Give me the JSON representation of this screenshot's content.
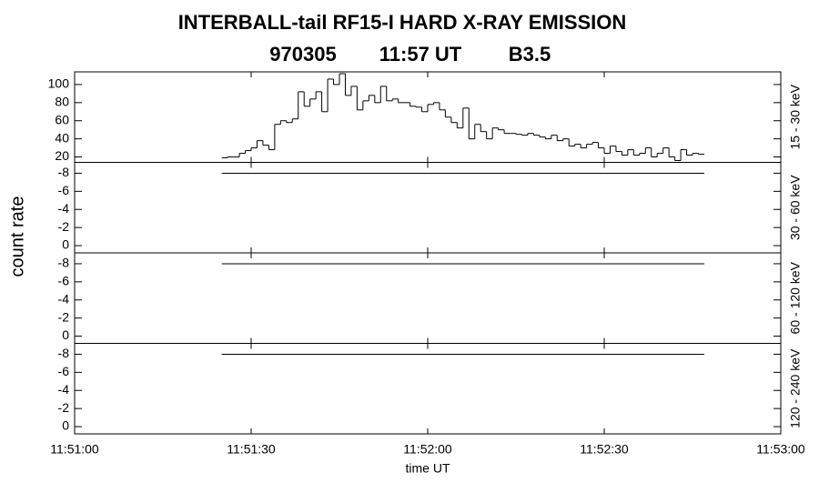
{
  "header": {
    "title": "INTERBALL-tail  RF15-I  HARD  X-RAY  EMISSION",
    "subtitle": [
      "970305",
      "11:57 UT",
      "B3.5"
    ],
    "ylabel": "count rate",
    "xlabel": "time UT"
  },
  "chart_data": [
    {
      "type": "step",
      "ylabel": "15 - 30 keV",
      "color": "#000000",
      "xlim": [
        42660,
        42780
      ],
      "ylim": [
        14,
        114
      ],
      "yticks": [
        20,
        40,
        60,
        80,
        100
      ],
      "x": [
        42685,
        42686,
        42687,
        42688,
        42689,
        42690,
        42691,
        42692,
        42693,
        42694,
        42695,
        42696,
        42697,
        42698,
        42699,
        42700,
        42701,
        42702,
        42703,
        42704,
        42705,
        42706,
        42707,
        42708,
        42709,
        42710,
        42711,
        42712,
        42713,
        42714,
        42715,
        42716,
        42717,
        42718,
        42719,
        42720,
        42721,
        42722,
        42723,
        42724,
        42725,
        42726,
        42727,
        42728,
        42729,
        42730,
        42731,
        42732,
        42733,
        42734,
        42735,
        42736,
        42737,
        42738,
        42739,
        42740,
        42741,
        42742,
        42743,
        42744,
        42745,
        42746,
        42747,
        42748,
        42749,
        42750,
        42751,
        42752,
        42753,
        42754,
        42755,
        42756,
        42757,
        42758,
        42759,
        42760,
        42761,
        42762,
        42763,
        42764,
        42765,
        42766
      ],
      "values": [
        19,
        20,
        20,
        24,
        27,
        30,
        38,
        33,
        28,
        56,
        60,
        58,
        62,
        92,
        76,
        84,
        92,
        70,
        106,
        100,
        112,
        88,
        98,
        72,
        82,
        88,
        80,
        98,
        82,
        84,
        80,
        80,
        76,
        75,
        70,
        78,
        80,
        72,
        64,
        58,
        52,
        74,
        40,
        56,
        48,
        40,
        52,
        50,
        46,
        46,
        45,
        44,
        46,
        44,
        42,
        40,
        44,
        38,
        40,
        32,
        34,
        30,
        34,
        36,
        30,
        24,
        32,
        26,
        22,
        28,
        22,
        24,
        30,
        20,
        24,
        30,
        20,
        16,
        28,
        22,
        24,
        23
      ]
    },
    {
      "type": "line",
      "ylabel": "30 - 60 keV",
      "color": "#000000",
      "xlim": [
        42660,
        42780
      ],
      "ylim": [
        0.8,
        -9.2
      ],
      "yticks": [
        -8,
        -6,
        -4,
        -2,
        0
      ],
      "x": [
        42685,
        42767
      ],
      "values": [
        -8,
        -8
      ]
    },
    {
      "type": "line",
      "ylabel": "60 - 120 keV",
      "color": "#000000",
      "xlim": [
        42660,
        42780
      ],
      "ylim": [
        0.8,
        -9.2
      ],
      "yticks": [
        -8,
        -6,
        -4,
        -2,
        0
      ],
      "x": [
        42685,
        42767
      ],
      "values": [
        -8,
        -8
      ]
    },
    {
      "type": "line",
      "ylabel": "120 - 240 keV",
      "color": "#000000",
      "xlim": [
        42660,
        42780
      ],
      "ylim": [
        0.8,
        -9.2
      ],
      "yticks": [
        -8,
        -6,
        -4,
        -2,
        0
      ],
      "x": [
        42685,
        42767
      ],
      "values": [
        -8,
        -8
      ],
      "xticks": [
        {
          "value": 42660,
          "label": "11:51:00"
        },
        {
          "value": 42690,
          "label": "11:51:30"
        },
        {
          "value": 42720,
          "label": "11:52:00"
        },
        {
          "value": 42750,
          "label": "11:52:30"
        },
        {
          "value": 42780,
          "label": "11:53:00"
        }
      ]
    }
  ]
}
